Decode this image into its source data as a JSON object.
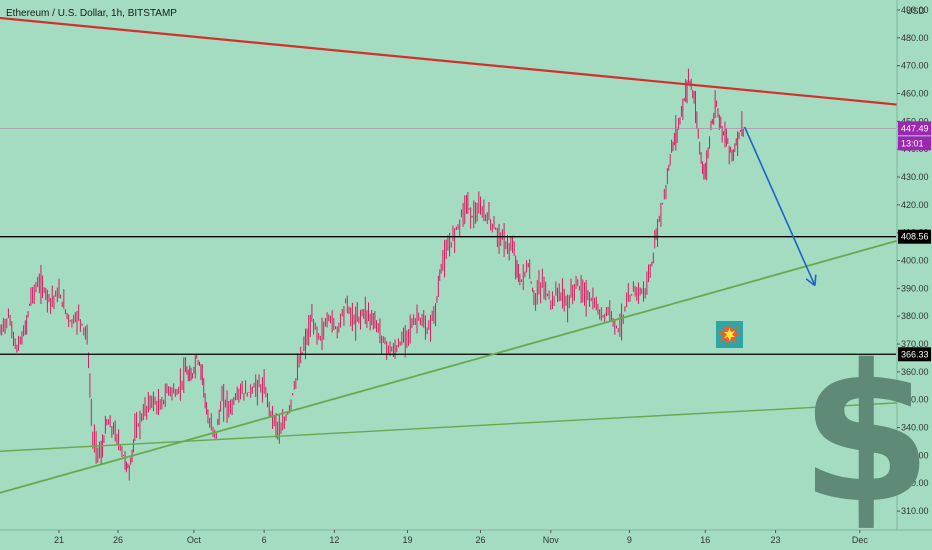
{
  "header": {
    "title": "Ethereum / U.S. Dollar, 1h, BITSTAMP",
    "currency": "USD"
  },
  "colors": {
    "background": "#a3dcc1",
    "resistance_line": "#d32f2f",
    "support_lines": "#6aa84f",
    "horizontal_levels": "#000000",
    "arrow": "#1e63c6",
    "candles": "#d81b60",
    "current_price_tag": "#9c27b0",
    "axis_text": "#333333",
    "dollar_sign": "#5e8a77"
  },
  "icons": {
    "dollar": "dollar-sign-icon",
    "explosion": "explosion-emoji-icon"
  },
  "chart_data": {
    "type": "line",
    "title": "Ethereum / U.S. Dollar, 1h, BITSTAMP",
    "xlabel": "",
    "ylabel": "USD",
    "ylim": [
      305,
      490
    ],
    "y_ticks": [
      "310.00",
      "320.00",
      "330.00",
      "340.00",
      "350.00",
      "360.00",
      "370.00",
      "380.00",
      "390.00",
      "400.00",
      "410.00",
      "420.00",
      "430.00",
      "440.00",
      "450.00",
      "460.00",
      "470.00",
      "480.00",
      "490.00"
    ],
    "x_ticks": [
      "21",
      "26",
      "Oct",
      "6",
      "12",
      "19",
      "26",
      "Nov",
      "9",
      "16",
      "23",
      "Dec"
    ],
    "series": [
      {
        "values": [
          [
            0,
            374
          ],
          [
            3,
            380
          ],
          [
            6,
            368
          ],
          [
            9,
            375
          ],
          [
            11,
            387
          ],
          [
            14,
            392
          ],
          [
            18,
            386
          ],
          [
            21,
            388
          ],
          [
            25,
            378
          ],
          [
            28,
            380
          ],
          [
            31,
            373
          ],
          [
            33,
            336
          ],
          [
            36,
            330
          ],
          [
            38,
            342
          ],
          [
            41,
            338
          ],
          [
            44,
            330
          ],
          [
            46,
            324
          ],
          [
            48,
            338
          ],
          [
            51,
            345
          ],
          [
            54,
            350
          ],
          [
            57,
            347
          ],
          [
            60,
            354
          ],
          [
            63,
            352
          ],
          [
            66,
            360
          ],
          [
            68,
            357
          ],
          [
            70,
            365
          ],
          [
            72,
            360
          ],
          [
            74,
            342
          ],
          [
            77,
            338
          ],
          [
            79,
            350
          ],
          [
            82,
            347
          ],
          [
            85,
            353
          ],
          [
            88,
            352
          ],
          [
            91,
            355
          ],
          [
            94,
            354
          ],
          [
            97,
            344
          ],
          [
            100,
            338
          ],
          [
            103,
            347
          ],
          [
            107,
            365
          ],
          [
            111,
            378
          ],
          [
            114,
            372
          ],
          [
            117,
            380
          ],
          [
            120,
            375
          ],
          [
            123,
            385
          ],
          [
            126,
            378
          ],
          [
            130,
            382
          ],
          [
            134,
            377
          ],
          [
            137,
            370
          ],
          [
            140,
            367
          ],
          [
            143,
            371
          ],
          [
            146,
            376
          ],
          [
            149,
            380
          ],
          [
            152,
            374
          ],
          [
            155,
            382
          ],
          [
            157,
            398
          ],
          [
            160,
            405
          ],
          [
            163,
            413
          ],
          [
            166,
            421
          ],
          [
            168,
            416
          ],
          [
            171,
            418
          ],
          [
            174,
            415
          ],
          [
            177,
            410
          ],
          [
            180,
            406
          ],
          [
            183,
            403
          ],
          [
            185,
            392
          ],
          [
            188,
            398
          ],
          [
            190,
            386
          ],
          [
            193,
            392
          ],
          [
            196,
            385
          ],
          [
            199,
            389
          ],
          [
            202,
            384
          ],
          [
            205,
            392
          ],
          [
            208,
            388
          ],
          [
            211,
            385
          ],
          [
            214,
            380
          ],
          [
            217,
            382
          ],
          [
            220,
            375
          ],
          [
            223,
            384
          ],
          [
            226,
            390
          ],
          [
            229,
            388
          ],
          [
            232,
            398
          ],
          [
            234,
            412
          ],
          [
            237,
            426
          ],
          [
            239,
            440
          ],
          [
            241,
            447
          ],
          [
            243,
            455
          ],
          [
            245,
            466
          ],
          [
            247,
            458
          ],
          [
            249,
            440
          ],
          [
            251,
            430
          ],
          [
            253,
            448
          ],
          [
            255,
            457
          ],
          [
            257,
            447
          ],
          [
            259,
            442
          ],
          [
            261,
            438
          ],
          [
            263,
            446
          ],
          [
            265,
            448
          ]
        ]
      }
    ],
    "annotations": [
      {
        "label": "447.49",
        "kind": "current-price"
      },
      {
        "label": "13:01",
        "kind": "countdown"
      },
      {
        "label": "408.56",
        "kind": "horizontal-level"
      },
      {
        "label": "366.33",
        "kind": "horizontal-level"
      }
    ],
    "trendlines": {
      "resistance": [
        [
          -9,
          488
        ],
        [
          340,
          454
        ]
      ],
      "rising_support": [
        [
          -9,
          314
        ],
        [
          340,
          413
        ]
      ],
      "long_support": [
        [
          -9,
          331
        ],
        [
          340,
          350
        ]
      ]
    },
    "projection_arrow": {
      "from": [
        265,
        448
      ],
      "to": [
        290,
        391
      ]
    },
    "x_tick_positions": [
      21,
      42,
      69,
      94,
      119,
      145,
      171,
      196,
      224,
      251,
      276,
      306
    ]
  }
}
